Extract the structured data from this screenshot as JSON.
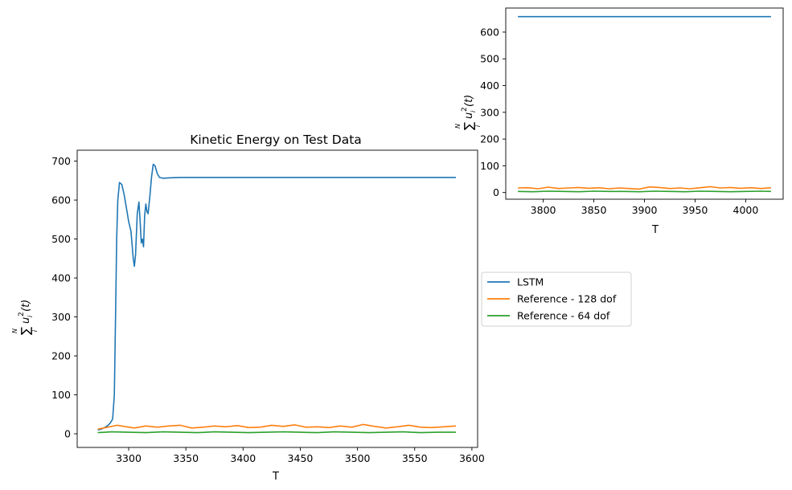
{
  "chart_data": [
    {
      "type": "line",
      "title": "Kinetic Energy on Test Data",
      "xlabel": "T",
      "ylabel_sum_bottom": "i",
      "ylabel_sum_top": "N",
      "ylabel_term": "u",
      "ylabel_term_sub": "i",
      "ylabel_term_sup": "2",
      "ylabel_tail": "(t)",
      "xlim": [
        3255,
        3605
      ],
      "ylim": [
        -35,
        728
      ],
      "xticks": [
        3300,
        3350,
        3400,
        3450,
        3500,
        3550,
        3600
      ],
      "yticks": [
        0,
        100,
        200,
        300,
        400,
        500,
        600,
        700
      ],
      "series": [
        {
          "name": "LSTM",
          "color": "#1f77b4",
          "x": [
            3273,
            3276,
            3279,
            3282,
            3284,
            3286,
            3287.5,
            3288.5,
            3289.5,
            3290.5,
            3292,
            3294,
            3296,
            3298,
            3300,
            3302,
            3304,
            3305,
            3306,
            3307.5,
            3309,
            3310,
            3311,
            3312,
            3313,
            3314,
            3315,
            3316,
            3317,
            3318.5,
            3320,
            3321.5,
            3323,
            3325,
            3327,
            3330,
            3335,
            3345,
            3400,
            3500,
            3586
          ],
          "values": [
            10,
            12,
            16,
            22,
            28,
            38,
            100,
            300,
            500,
            600,
            645,
            640,
            615,
            580,
            545,
            520,
            450,
            430,
            460,
            565,
            595,
            545,
            490,
            500,
            480,
            560,
            590,
            570,
            565,
            610,
            660,
            692,
            688,
            668,
            658,
            656,
            657,
            658,
            658,
            658,
            658
          ]
        },
        {
          "name": "Reference - 128 dof",
          "color": "#ff7f0e",
          "x": [
            3273,
            3280,
            3290,
            3298,
            3305,
            3315,
            3325,
            3335,
            3345,
            3355,
            3365,
            3375,
            3385,
            3395,
            3405,
            3415,
            3425,
            3435,
            3445,
            3455,
            3465,
            3475,
            3485,
            3495,
            3505,
            3515,
            3525,
            3535,
            3545,
            3555,
            3565,
            3575,
            3586
          ],
          "values": [
            12,
            16,
            22,
            18,
            15,
            20,
            17,
            20,
            22,
            15,
            17,
            20,
            18,
            21,
            16,
            17,
            22,
            19,
            23,
            17,
            18,
            16,
            20,
            17,
            24,
            19,
            15,
            18,
            22,
            17,
            16,
            18,
            20
          ]
        },
        {
          "name": "Reference - 64 dof",
          "color": "#2ca02c",
          "x": [
            3273,
            3285,
            3300,
            3315,
            3330,
            3345,
            3360,
            3375,
            3390,
            3405,
            3420,
            3435,
            3450,
            3465,
            3480,
            3495,
            3510,
            3525,
            3540,
            3555,
            3570,
            3586
          ],
          "values": [
            3,
            5,
            4,
            3,
            5,
            4,
            3,
            5,
            4,
            3,
            4,
            5,
            4,
            3,
            5,
            4,
            3,
            4,
            5,
            3,
            4,
            4
          ]
        }
      ],
      "legend": "outside-right"
    },
    {
      "type": "line",
      "title": "",
      "xlabel": "T",
      "ylabel_sum_bottom": "i",
      "ylabel_sum_top": "N",
      "ylabel_term": "u",
      "ylabel_term_sub": "i",
      "ylabel_term_sup": "2",
      "ylabel_tail": "(t)",
      "xlim": [
        3763,
        4037
      ],
      "ylim": [
        -25,
        690
      ],
      "xticks": [
        3800,
        3850,
        3900,
        3950,
        4000
      ],
      "yticks": [
        0,
        100,
        200,
        300,
        400,
        500,
        600
      ],
      "series": [
        {
          "color": "#1f77b4",
          "x": [
            3775,
            4025
          ],
          "values": [
            658,
            658
          ]
        },
        {
          "color": "#ff7f0e",
          "x": [
            3775,
            3785,
            3795,
            3805,
            3815,
            3825,
            3835,
            3845,
            3855,
            3865,
            3875,
            3885,
            3895,
            3905,
            3915,
            3925,
            3935,
            3945,
            3955,
            3965,
            3975,
            3985,
            3995,
            4005,
            4015,
            4025
          ],
          "values": [
            17,
            18,
            14,
            20,
            15,
            17,
            19,
            16,
            18,
            14,
            17,
            15,
            13,
            21,
            19,
            15,
            17,
            14,
            18,
            22,
            17,
            19,
            16,
            18,
            15,
            18
          ]
        },
        {
          "color": "#2ca02c",
          "x": [
            3775,
            3790,
            3805,
            3820,
            3835,
            3850,
            3865,
            3880,
            3895,
            3910,
            3925,
            3940,
            3955,
            3970,
            3985,
            4000,
            4015,
            4025
          ],
          "values": [
            4,
            3,
            5,
            4,
            3,
            5,
            4,
            4,
            3,
            5,
            4,
            3,
            5,
            4,
            3,
            4,
            5,
            4
          ]
        }
      ]
    }
  ]
}
